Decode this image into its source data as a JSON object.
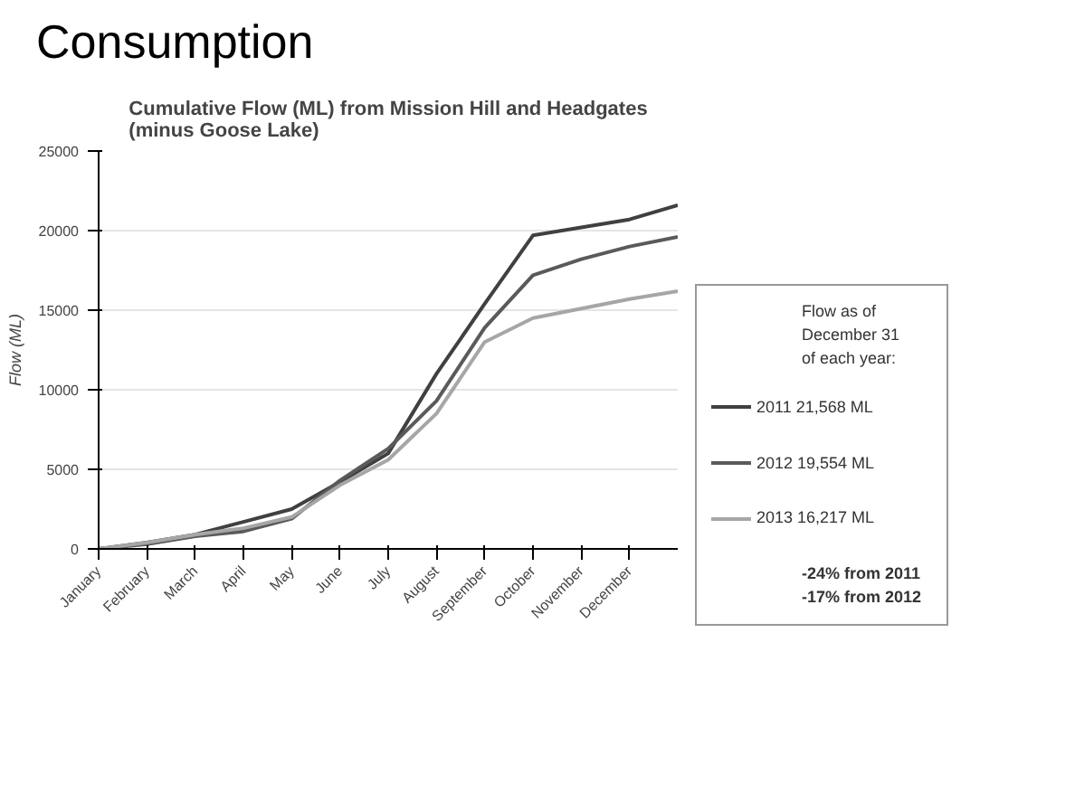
{
  "chart_data": {
    "type": "line",
    "title": "Consumption",
    "subtitle": "Cumulative Flow (ML) from Mission Hill and Headgates\n(minus Goose Lake)",
    "ylabel": "Flow (ML)",
    "categories": [
      "January",
      "February",
      "March",
      "April",
      "May",
      "June",
      "July",
      "August",
      "September",
      "October",
      "November",
      "December",
      null
    ],
    "series": [
      {
        "name": "2011 21,568 ML",
        "color": "#404040",
        "values": [
          0,
          400,
          900,
          1700,
          2500,
          4200,
          6000,
          11000,
          15400,
          19700,
          20200,
          20700,
          21600
        ]
      },
      {
        "name": "2012 19,554 ML",
        "color": "#5a5a5a",
        "values": [
          0,
          300,
          800,
          1100,
          1900,
          4300,
          6300,
          9300,
          13900,
          17200,
          18200,
          19000,
          19600
        ]
      },
      {
        "name": "2013 16,217 ML",
        "color": "#a6a6a6",
        "values": [
          0,
          400,
          900,
          1300,
          2000,
          4000,
          5600,
          8500,
          13000,
          14500,
          15100,
          15700,
          16200
        ]
      }
    ],
    "legend_title": "Flow as of\nDecember 31\nof each year:",
    "legend": "right",
    "annotations": [
      "-24% from 2011",
      "-17% from 2012"
    ],
    "ylim": [
      0,
      25000
    ],
    "yticks": [
      0,
      5000,
      10000,
      15000,
      20000,
      25000
    ],
    "grid": "y",
    "marker": "none",
    "line_style": "solid"
  }
}
